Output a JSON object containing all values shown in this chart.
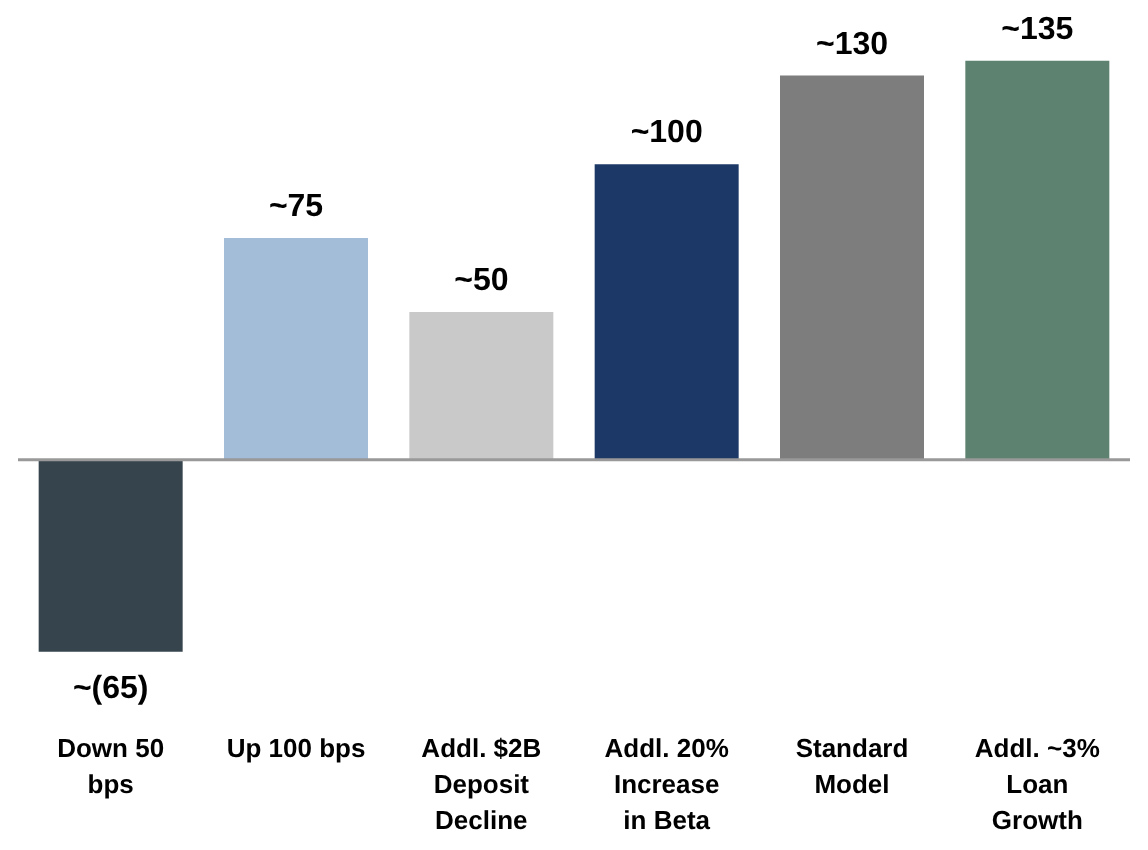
{
  "chart_data": {
    "type": "bar",
    "categories": [
      "Down 50 bps",
      "Up 100 bps",
      "Addl. $2B Deposit Decline",
      "Addl. 20% Increase in Beta",
      "Standard Model",
      "Addl. ~3% Loan Growth"
    ],
    "values": [
      -65,
      75,
      50,
      100,
      130,
      135
    ],
    "value_labels": [
      "~(65)",
      "~75",
      "~50",
      "~100",
      "~130",
      "~135"
    ],
    "colors": [
      "#36444e",
      "#a3bcd8",
      "#c9c9c9",
      "#1c3866",
      "#7d7d7d",
      "#5e8270"
    ],
    "grid": false
  }
}
